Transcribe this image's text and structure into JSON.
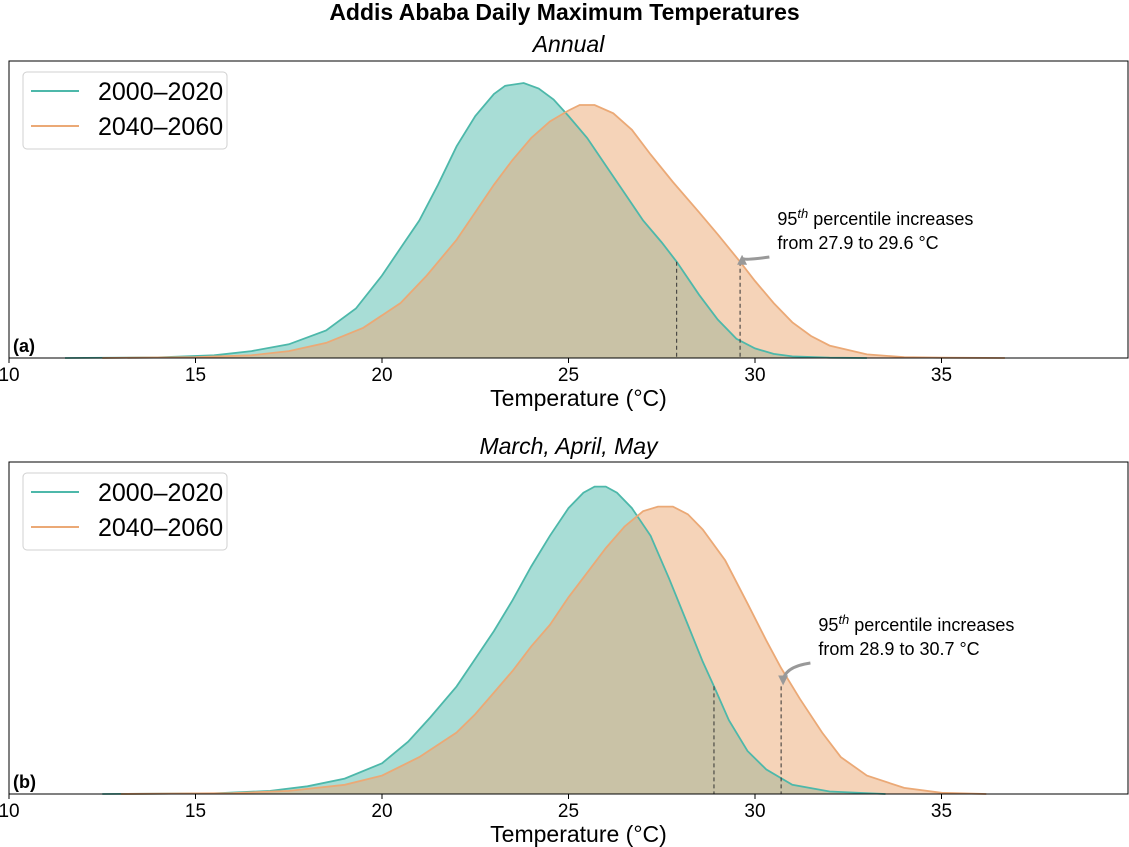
{
  "title": "Addis Ababa Daily Maximum Temperatures",
  "colors": {
    "baseline": "#4db8aa",
    "future": "#eba976",
    "baseline_fill": "#a8ddd6",
    "future_fill": "#f5d3b8",
    "overlap_fill": "#c9c2a6",
    "arrow": "#999999"
  },
  "chart_data": [
    {
      "type": "area",
      "panel_label": "(a)",
      "title": "Annual",
      "xlabel": "Temperature (°C)",
      "ylabel": "",
      "xlim": [
        10,
        40
      ],
      "xticks": [
        10,
        15,
        20,
        25,
        30,
        35
      ],
      "tick_labels": [
        "10",
        "15",
        "20",
        "25",
        "30",
        "35"
      ],
      "ylim": [
        0,
        1.08
      ],
      "legend_position": "upper-left",
      "series": [
        {
          "name": "2000–2020",
          "color": "#4db8aa",
          "x": [
            11.5,
            14,
            15.5,
            16.5,
            17.5,
            18.5,
            19.3,
            20,
            20.5,
            21,
            21.5,
            22,
            22.5,
            23,
            23.3,
            23.8,
            24.2,
            24.6,
            25,
            25.5,
            26,
            26.5,
            27,
            27.5,
            27.9,
            28.5,
            29,
            29.5,
            30,
            30.5,
            31,
            32,
            33
          ],
          "y": [
            0,
            0.002,
            0.01,
            0.025,
            0.05,
            0.1,
            0.18,
            0.3,
            0.4,
            0.5,
            0.63,
            0.77,
            0.88,
            0.96,
            0.99,
            1.0,
            0.98,
            0.94,
            0.88,
            0.8,
            0.7,
            0.6,
            0.5,
            0.42,
            0.35,
            0.23,
            0.14,
            0.07,
            0.035,
            0.015,
            0.006,
            0.001,
            0
          ]
        },
        {
          "name": "2040–2060",
          "color": "#eba976",
          "x": [
            12.5,
            15,
            16.5,
            17.5,
            18.5,
            19.5,
            20.5,
            21.2,
            22,
            22.5,
            23,
            23.5,
            24,
            24.5,
            25,
            25.3,
            25.7,
            26.2,
            26.7,
            27.2,
            27.8,
            28.5,
            29,
            29.6,
            30,
            30.5,
            31,
            31.5,
            32,
            33,
            34,
            35,
            36.7
          ],
          "y": [
            0,
            0.003,
            0.01,
            0.025,
            0.055,
            0.11,
            0.2,
            0.3,
            0.43,
            0.53,
            0.63,
            0.72,
            0.8,
            0.86,
            0.9,
            0.92,
            0.92,
            0.89,
            0.83,
            0.74,
            0.64,
            0.53,
            0.45,
            0.35,
            0.28,
            0.2,
            0.13,
            0.08,
            0.045,
            0.013,
            0.003,
            0.001,
            0
          ]
        }
      ],
      "percentile_lines": [
        {
          "x": 27.9,
          "y": 0.35
        },
        {
          "x": 29.6,
          "y": 0.35
        }
      ],
      "annotation": {
        "prefix": "95",
        "superscript": "th",
        "line1_rest": " percentile increases",
        "line2": "from 27.9 to 29.6 °C",
        "text_x": 30.6,
        "target": [
          29.6,
          0.35
        ]
      }
    },
    {
      "type": "area",
      "panel_label": "(b)",
      "title": "March, April, May",
      "xlabel": "Temperature (°C)",
      "ylabel": "",
      "xlim": [
        10,
        40
      ],
      "xticks": [
        10,
        15,
        20,
        25,
        30,
        35
      ],
      "tick_labels": [
        "10",
        "15",
        "20",
        "25",
        "30",
        "35"
      ],
      "ylim": [
        0,
        1.08
      ],
      "legend_position": "upper-left",
      "series": [
        {
          "name": "2000–2020",
          "color": "#4db8aa",
          "x": [
            12.5,
            15.5,
            17,
            18,
            19,
            20,
            20.7,
            21.3,
            22,
            22.5,
            23,
            23.5,
            24,
            24.5,
            25,
            25.4,
            25.7,
            26,
            26.3,
            26.7,
            27.2,
            27.7,
            28.2,
            28.6,
            28.9,
            29.3,
            29.8,
            30.3,
            31,
            32,
            33.5
          ],
          "y": [
            0,
            0.002,
            0.01,
            0.025,
            0.05,
            0.1,
            0.17,
            0.25,
            0.35,
            0.44,
            0.53,
            0.63,
            0.74,
            0.84,
            0.93,
            0.98,
            1.0,
            1.0,
            0.98,
            0.93,
            0.84,
            0.7,
            0.55,
            0.43,
            0.35,
            0.24,
            0.14,
            0.08,
            0.03,
            0.008,
            0
          ]
        },
        {
          "name": "2040–2060",
          "color": "#eba976",
          "x": [
            13,
            16,
            17.5,
            19,
            20,
            21,
            22,
            22.5,
            23,
            23.5,
            24,
            24.5,
            25,
            25.5,
            26,
            26.5,
            27,
            27.4,
            27.8,
            28.2,
            28.6,
            29.2,
            29.8,
            30.3,
            30.7,
            31.2,
            31.8,
            32.3,
            33,
            34,
            35,
            36.2
          ],
          "y": [
            0,
            0.003,
            0.01,
            0.03,
            0.06,
            0.12,
            0.2,
            0.26,
            0.33,
            0.4,
            0.48,
            0.55,
            0.64,
            0.72,
            0.8,
            0.87,
            0.92,
            0.935,
            0.935,
            0.91,
            0.86,
            0.76,
            0.62,
            0.5,
            0.41,
            0.31,
            0.2,
            0.12,
            0.06,
            0.02,
            0.004,
            0
          ]
        }
      ],
      "percentile_lines": [
        {
          "x": 28.9,
          "y": 0.35
        },
        {
          "x": 30.7,
          "y": 0.35
        }
      ],
      "annotation": {
        "prefix": "95",
        "superscript": "th",
        "line1_rest": " percentile increases",
        "line2": "from 28.9 to 30.7 °C",
        "text_x": 31.7,
        "target": [
          30.7,
          0.35
        ]
      }
    }
  ]
}
